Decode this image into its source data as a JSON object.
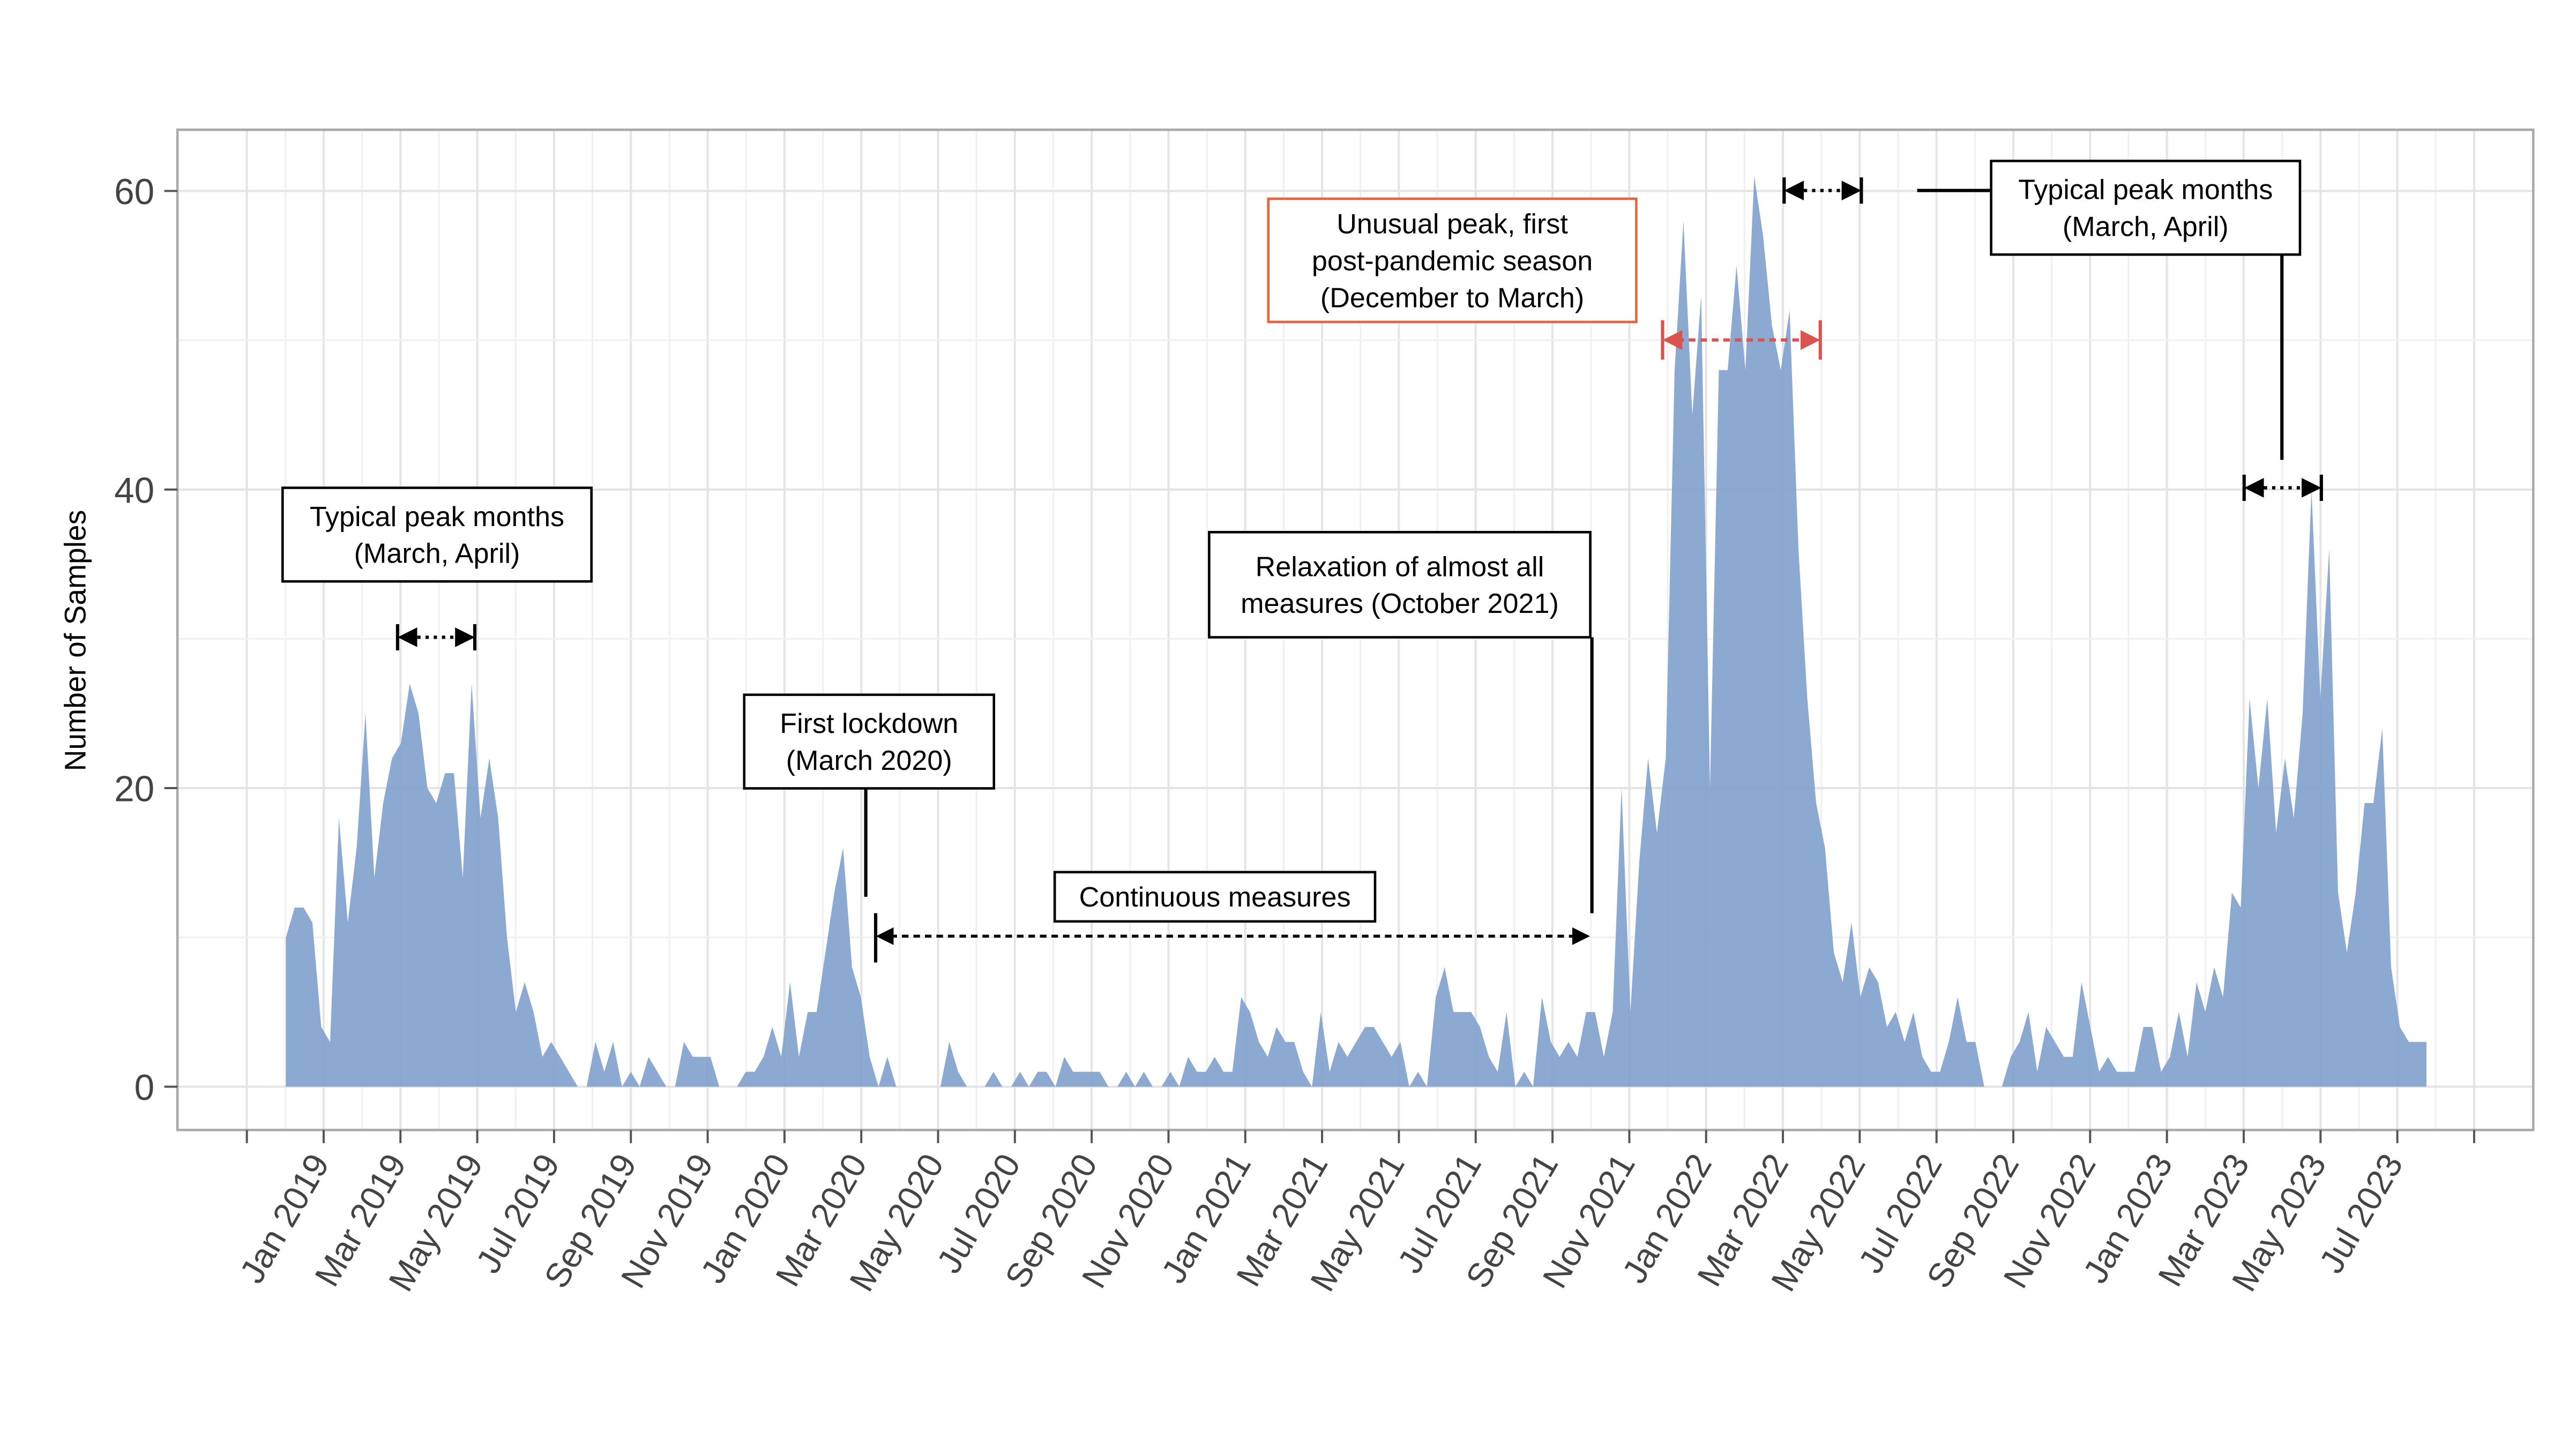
{
  "chart_data": {
    "type": "area",
    "y_label": "Number of Samples",
    "color": "#7fa0cc",
    "grid": true,
    "ylim": [
      -2.9,
      64.1
    ],
    "yticks": [
      0,
      20,
      40,
      60
    ],
    "xticks": [
      "Jan 2019",
      "Mar 2019",
      "May 2019",
      "Jul 2019",
      "Sep 2019",
      "Nov 2019",
      "Jan 2020",
      "Mar 2020",
      "May 2020",
      "Jul 2020",
      "Sep 2020",
      "Nov 2020",
      "Jan 2021",
      "Mar 2021",
      "May 2021",
      "Jul 2021",
      "Sep 2021",
      "Nov 2021",
      "Jan 2022",
      "Mar 2022",
      "May 2022",
      "Jul 2022",
      "Sep 2022",
      "Nov 2022",
      "Jan 2023",
      "Mar 2023",
      "May 2023",
      "Jul 2023"
    ],
    "values": [
      10,
      12,
      12,
      11,
      4,
      3,
      18,
      11,
      16,
      25,
      14,
      19,
      22,
      23,
      27,
      25,
      20,
      19,
      21,
      21,
      14,
      27,
      18,
      22,
      18,
      10,
      5,
      7,
      5,
      2,
      3,
      2,
      1,
      0,
      0,
      3,
      1,
      3,
      0,
      1,
      0,
      2,
      1,
      0,
      0,
      3,
      2,
      2,
      2,
      0,
      0,
      0,
      1,
      1,
      2,
      4,
      2,
      7,
      2,
      5,
      5,
      9,
      13,
      16,
      8,
      6,
      2,
      0,
      2,
      0,
      0,
      0,
      0,
      0,
      0,
      3,
      1,
      0,
      0,
      0,
      1,
      0,
      0,
      1,
      0,
      1,
      1,
      0,
      2,
      1,
      1,
      1,
      1,
      0,
      0,
      1,
      0,
      1,
      0,
      0,
      1,
      0,
      2,
      1,
      1,
      2,
      1,
      1,
      6,
      5,
      3,
      2,
      4,
      3,
      3,
      1,
      0,
      5,
      1,
      3,
      2,
      3,
      4,
      4,
      3,
      2,
      3,
      0,
      1,
      0,
      6,
      8,
      5,
      5,
      5,
      4,
      2,
      1,
      5,
      0,
      1,
      0,
      6,
      3,
      2,
      3,
      2,
      5,
      5,
      2,
      5,
      20,
      5,
      15,
      22,
      17,
      22,
      48,
      58,
      45,
      53,
      20,
      48,
      48,
      55,
      48,
      61,
      57,
      51,
      48,
      52,
      36,
      26,
      19,
      16,
      9,
      7,
      11,
      6,
      8,
      7,
      4,
      5,
      3,
      5,
      2,
      1,
      1,
      3,
      6,
      3,
      3,
      0,
      0,
      0,
      2,
      3,
      5,
      1,
      4,
      3,
      2,
      2,
      7,
      4,
      1,
      2,
      1,
      1,
      1,
      4,
      4,
      1,
      2,
      5,
      2,
      7,
      5,
      8,
      6,
      13,
      12,
      26,
      20,
      26,
      17,
      22,
      18,
      25,
      40,
      26,
      36,
      13,
      9,
      13,
      19,
      19,
      24,
      8,
      4,
      3,
      3,
      3
    ],
    "annotations": [
      {
        "lines": [
          "Typical peak months",
          "(March, April)"
        ]
      },
      {
        "lines": [
          "First lockdown",
          "(March 2020)"
        ]
      },
      {
        "lines": [
          "Continuous measures"
        ]
      },
      {
        "lines": [
          "Relaxation of almost all",
          "measures (October 2021)"
        ]
      },
      {
        "lines": [
          "Unusual peak, first",
          "post-pandemic season",
          "(December to March)"
        ]
      },
      {
        "lines": [
          "Typical peak months",
          "(March, April)"
        ]
      }
    ]
  }
}
